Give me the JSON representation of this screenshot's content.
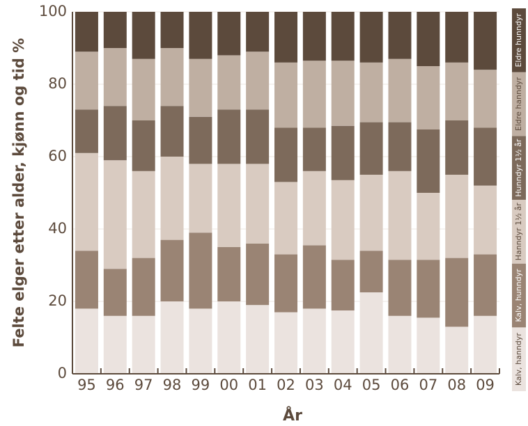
{
  "chart_data": {
    "type": "stacked-bar",
    "y_label": "Felte elger etter alder, kjønn og tid %",
    "x_label": "År",
    "categories": [
      "95",
      "96",
      "97",
      "98",
      "99",
      "00",
      "01",
      "02",
      "03",
      "04",
      "05",
      "06",
      "07",
      "08",
      "09"
    ],
    "series": [
      {
        "name": "Kalv, hanndyr",
        "color": "#ebe3df",
        "values": [
          18,
          16,
          16,
          20,
          18,
          20,
          19,
          17,
          18,
          17.5,
          22.5,
          16,
          15.5,
          13,
          16
        ]
      },
      {
        "name": "Kalv, hunndyr",
        "color": "#9a8474",
        "values": [
          16,
          13,
          16,
          17,
          21,
          15,
          17,
          16,
          17.5,
          14,
          11.5,
          15.5,
          16,
          19,
          17
        ]
      },
      {
        "name": "Hanndyr 1½ år",
        "color": "#d9cbc1",
        "values": [
          27,
          30,
          24,
          23,
          19,
          23,
          22,
          20,
          20.5,
          22,
          21,
          24.5,
          18.5,
          23,
          19
        ]
      },
      {
        "name": "Hunndyr 1½ år",
        "color": "#7d6a5b",
        "values": [
          12,
          15,
          14,
          14,
          13,
          15,
          15,
          15,
          12,
          15,
          14.5,
          13.5,
          17.5,
          15,
          16
        ]
      },
      {
        "name": "Eldre hanndyr",
        "color": "#bfafa2",
        "values": [
          16,
          16,
          17,
          16,
          16,
          15,
          16,
          18,
          18.5,
          18,
          16.5,
          17.5,
          17.5,
          16,
          16
        ]
      },
      {
        "name": "Eldre hunndyr",
        "color": "#5c4a3c",
        "values": [
          11,
          10,
          13,
          10,
          13,
          12,
          11,
          14,
          13.5,
          13.5,
          14,
          13,
          15,
          14,
          16
        ]
      }
    ],
    "ylim": [
      0,
      100
    ],
    "yticks": [
      0,
      20,
      40,
      60,
      80,
      100
    ],
    "grid": true
  }
}
